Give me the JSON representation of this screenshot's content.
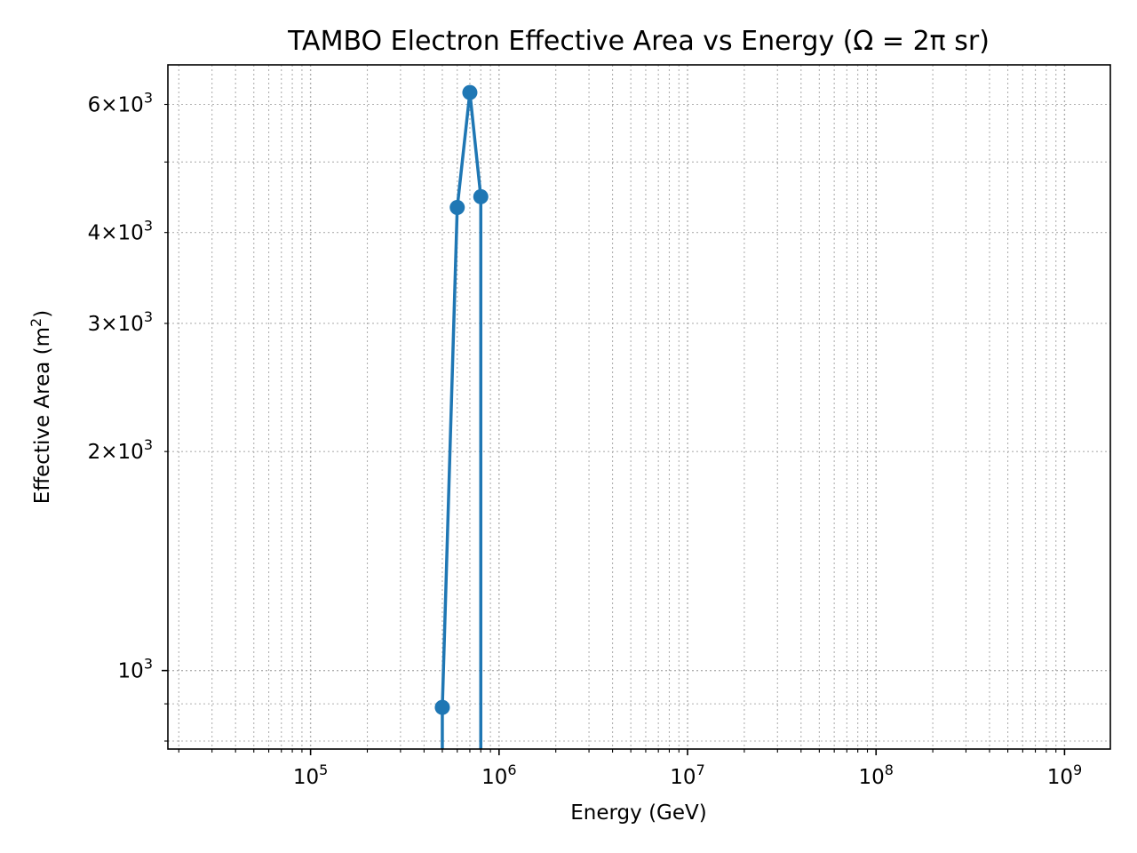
{
  "chart_data": {
    "type": "line",
    "title": "TAMBO Electron Effective Area vs Energy (Ω = 2π sr)",
    "xlabel": "Energy (GeV)",
    "ylabel_text": "Effective Area (m",
    "ylabel_sup": "2",
    "ylabel_close": ")",
    "xscale": "log",
    "yscale": "log",
    "xlim": [
      17500,
      1750000000
    ],
    "ylim": [
      780,
      6800
    ],
    "grid": true,
    "legend": "none",
    "x_ticks": [
      {
        "base": "10",
        "exp": "5",
        "value": 100000
      },
      {
        "base": "10",
        "exp": "6",
        "value": 1000000
      },
      {
        "base": "10",
        "exp": "7",
        "value": 10000000
      },
      {
        "base": "10",
        "exp": "8",
        "value": 100000000
      },
      {
        "base": "10",
        "exp": "9",
        "value": 1000000000
      }
    ],
    "y_ticks": [
      {
        "mant": "2",
        "base": "10",
        "exp": "3",
        "value": 2000
      },
      {
        "mant": "3",
        "base": "10",
        "exp": "3",
        "value": 3000
      },
      {
        "mant": "4",
        "base": "10",
        "exp": "3",
        "value": 4000
      },
      {
        "mant": "6",
        "base": "10",
        "exp": "3",
        "value": 6000
      },
      {
        "mant": "",
        "base": "10",
        "exp": "3",
        "value": 1000
      }
    ],
    "series": [
      {
        "color": "#1f77b4",
        "marker": "circle",
        "points": [
          {
            "x": 500000,
            "y": 890
          },
          {
            "x": 600000,
            "y": 4330
          },
          {
            "x": 700000,
            "y": 6230
          },
          {
            "x": 800000,
            "y": 4480
          }
        ],
        "continues_below_axis": [
          {
            "x": 500000
          },
          {
            "x": 800000
          }
        ]
      }
    ]
  }
}
